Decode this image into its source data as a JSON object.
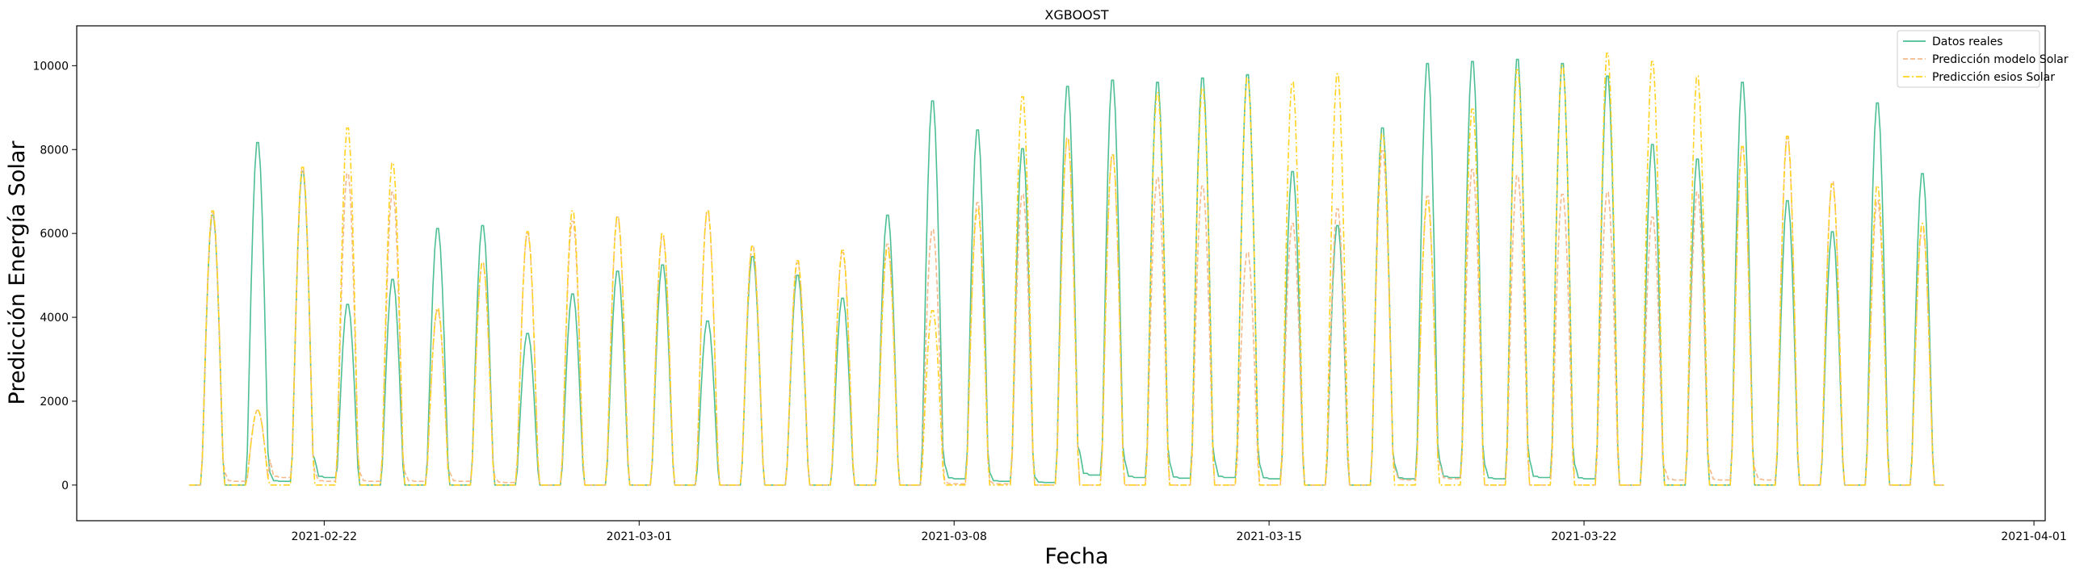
{
  "chart_data": {
    "type": "line",
    "title": "XGBOOST",
    "xlabel": "Fecha",
    "ylabel": "Predicción Energía Solar",
    "xlim": [
      "2021-02-16T12:00",
      "2021-04-01T06:00"
    ],
    "ylim": [
      -850,
      10950
    ],
    "x_ticks": [
      {
        "date": "2021-02-22",
        "label": "2021-02-22"
      },
      {
        "date": "2021-03-01",
        "label": "2021-03-01"
      },
      {
        "date": "2021-03-08",
        "label": "2021-03-08"
      },
      {
        "date": "2021-03-15",
        "label": "2021-03-15"
      },
      {
        "date": "2021-03-22",
        "label": "2021-03-22"
      },
      {
        "date": "2021-04-01",
        "label": "2021-04-01"
      }
    ],
    "y_ticks": [
      0,
      2000,
      4000,
      6000,
      8000,
      10000
    ],
    "grid": false,
    "legend_position": "top-right",
    "days": [
      "2021-02-19",
      "2021-02-20",
      "2021-02-21",
      "2021-02-22",
      "2021-02-23",
      "2021-02-24",
      "2021-02-25",
      "2021-02-26",
      "2021-02-27",
      "2021-02-28",
      "2021-03-01",
      "2021-03-02",
      "2021-03-03",
      "2021-03-04",
      "2021-03-05",
      "2021-03-06",
      "2021-03-07",
      "2021-03-08",
      "2021-03-09",
      "2021-03-10",
      "2021-03-11",
      "2021-03-12",
      "2021-03-13",
      "2021-03-14",
      "2021-03-15",
      "2021-03-16",
      "2021-03-17",
      "2021-03-18",
      "2021-03-19",
      "2021-03-20",
      "2021-03-21",
      "2021-03-22",
      "2021-03-23",
      "2021-03-24",
      "2021-03-25",
      "2021-03-26",
      "2021-03-27",
      "2021-03-28",
      "2021-03-29",
      "2021-03-30"
    ],
    "series": [
      {
        "name": "Datos reales",
        "color": "#4dbf94",
        "dash": "solid",
        "daily_peak": [
          6500,
          8250,
          7550,
          4350,
          4950,
          6180,
          6250,
          3650,
          4600,
          5150,
          5300,
          3950,
          5500,
          5050,
          4500,
          6500,
          9250,
          8550,
          8100,
          9600,
          9750,
          9700,
          9800,
          9880,
          7550,
          6250,
          8600,
          10150,
          10200,
          10250,
          10150,
          9850,
          8200,
          7850,
          9700,
          6850,
          6100,
          9200,
          7500,
          0
        ],
        "night_level": [
          0,
          300,
          600,
          0,
          0,
          0,
          0,
          0,
          0,
          0,
          0,
          0,
          0,
          0,
          0,
          0,
          500,
          300,
          200,
          800,
          600,
          550,
          600,
          500,
          0,
          0,
          500,
          600,
          500,
          600,
          500,
          0,
          0,
          0,
          0,
          0,
          0,
          0,
          0,
          0
        ]
      },
      {
        "name": "Predicción modelo Solar",
        "color": "#f5b98a",
        "dash": "dashed",
        "daily_peak": [
          6550,
          1800,
          7600,
          7500,
          7050,
          4200,
          5350,
          6050,
          6350,
          6450,
          6000,
          6600,
          5750,
          5350,
          5600,
          5800,
          6150,
          6800,
          7000,
          8350,
          7950,
          7400,
          7200,
          5600,
          6300,
          6650,
          8050,
          6950,
          7600,
          7450,
          7000,
          7050,
          6450,
          7050,
          8150,
          8350,
          7300,
          6850,
          6200,
          0
        ],
        "night_level": [
          300,
          600,
          300,
          300,
          300,
          300,
          200,
          0,
          0,
          0,
          0,
          0,
          0,
          0,
          0,
          0,
          100,
          100,
          0,
          0,
          0,
          0,
          0,
          0,
          0,
          0,
          400,
          500,
          0,
          0,
          0,
          0,
          400,
          400,
          400,
          0,
          0,
          0,
          0,
          0
        ]
      },
      {
        "name": "Predicción esios Solar",
        "color": "#ffd21e",
        "dash": "dashdot",
        "daily_peak": [
          6600,
          1800,
          7650,
          8600,
          7750,
          4250,
          5350,
          6100,
          6600,
          6450,
          6050,
          6600,
          5750,
          5400,
          5650,
          5700,
          4200,
          6650,
          9350,
          8350,
          7950,
          9450,
          9550,
          9800,
          9700,
          9900,
          8450,
          6850,
          9050,
          10000,
          10100,
          10400,
          10200,
          9850,
          8150,
          8400,
          7250,
          7200,
          6300,
          0
        ],
        "night_level": [
          0,
          0,
          0,
          0,
          0,
          0,
          0,
          0,
          0,
          0,
          0,
          0,
          0,
          0,
          0,
          0,
          0,
          0,
          0,
          0,
          0,
          0,
          0,
          0,
          0,
          0,
          0,
          0,
          0,
          0,
          0,
          0,
          0,
          0,
          0,
          0,
          0,
          0,
          0,
          0
        ]
      }
    ]
  }
}
